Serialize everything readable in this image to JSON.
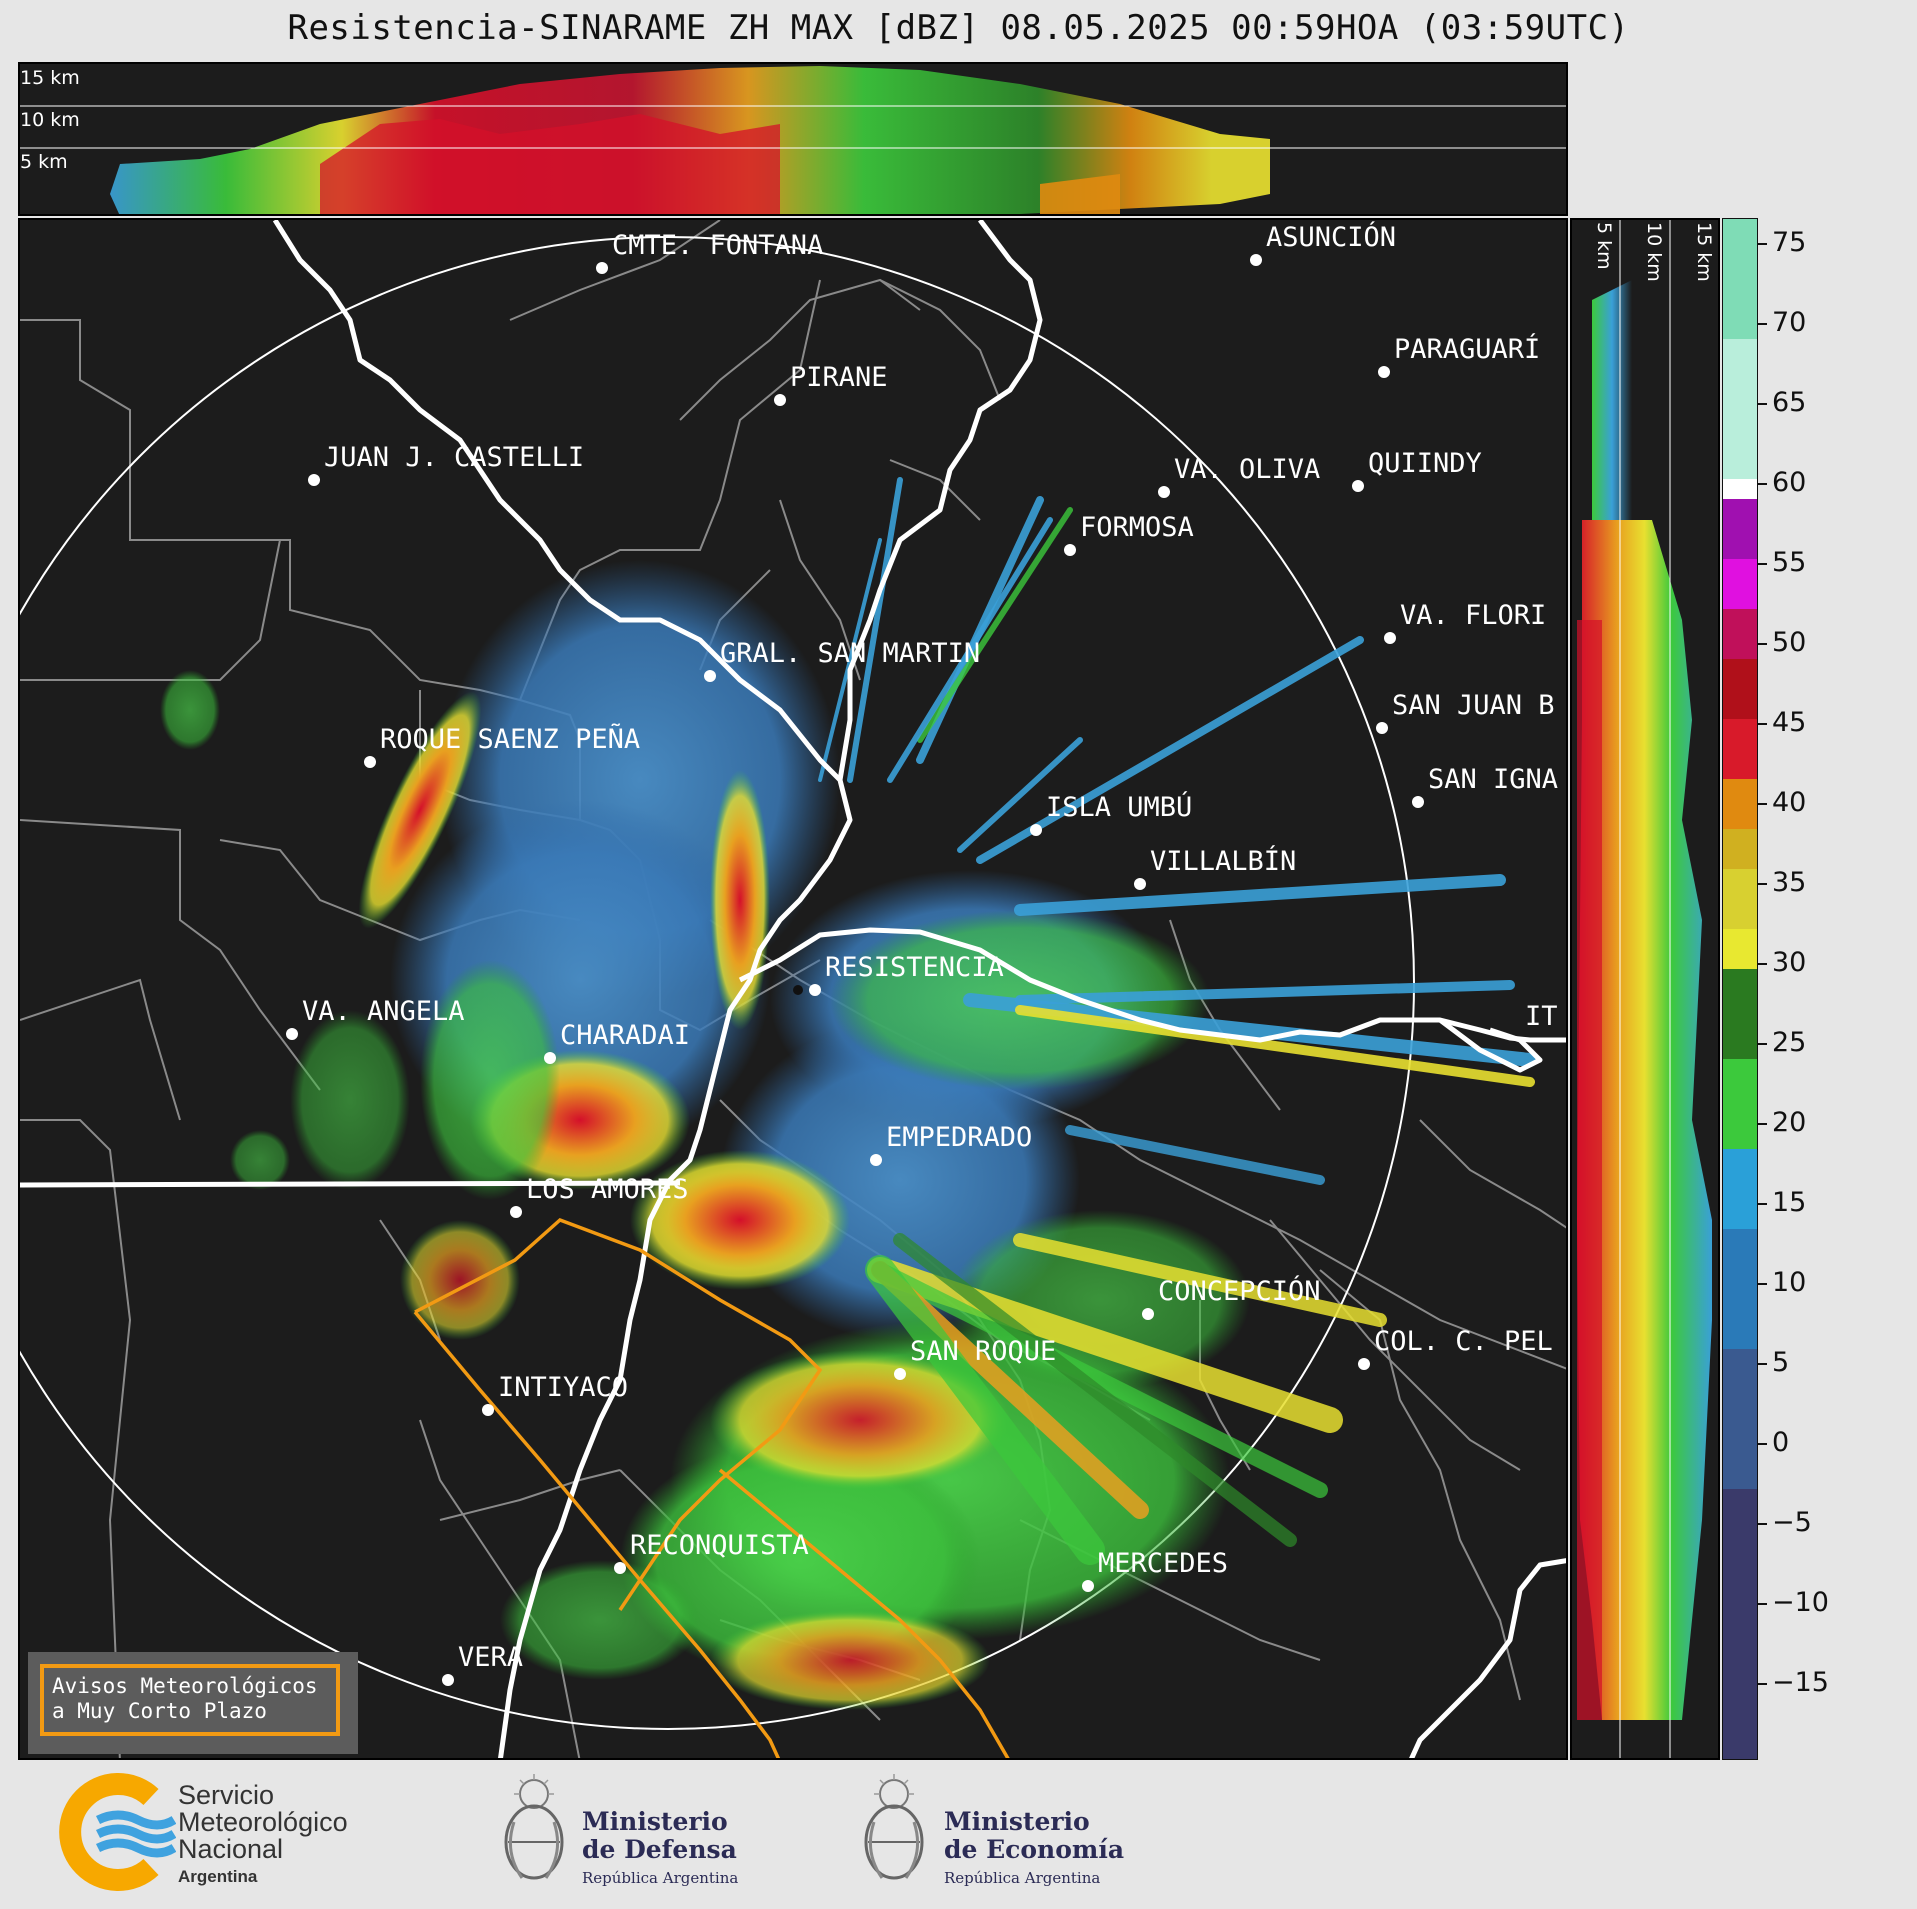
{
  "title": "Resistencia-SINARAME ZH MAX [dBZ] 08.05.2025 00:59HOA (03:59UTC)",
  "top_section": {
    "labels": [
      "15 km",
      "10 km",
      "5 km"
    ]
  },
  "side_section": {
    "labels": [
      "5 km",
      "10 km",
      "15 km"
    ]
  },
  "colorbar": {
    "ticks": [
      "75",
      "70",
      "65",
      "60",
      "55",
      "50",
      "45",
      "40",
      "35",
      "30",
      "25",
      "20",
      "15",
      "10",
      "5",
      "0",
      "−5",
      "−10",
      "−15"
    ],
    "range": [
      -20,
      77
    ]
  },
  "map": {
    "places": [
      {
        "name": "CMTE. FONTANA"
      },
      {
        "name": "ASUNCIÓN"
      },
      {
        "name": "PIRANE"
      },
      {
        "name": "PARAGUARÍ"
      },
      {
        "name": "JUAN J. CASTELLI"
      },
      {
        "name": "VA. OLIVA"
      },
      {
        "name": "QUIINDY"
      },
      {
        "name": "FORMOSA"
      },
      {
        "name": "VA. FLORI"
      },
      {
        "name": "GRAL. SAN MARTIN"
      },
      {
        "name": "SAN JUAN B"
      },
      {
        "name": "ROQUE SAENZ PEÑA"
      },
      {
        "name": "SAN IGNA"
      },
      {
        "name": "ISLA UMBÚ"
      },
      {
        "name": "VILLALBÍN"
      },
      {
        "name": "RESISTENCIA"
      },
      {
        "name": "VA. ANGELA"
      },
      {
        "name": "CHARADAI"
      },
      {
        "name": "IT"
      },
      {
        "name": "EMPEDRADO"
      },
      {
        "name": "LOS AMORES"
      },
      {
        "name": "CONCEPCIÓN"
      },
      {
        "name": "SAN ROQUE"
      },
      {
        "name": "COL. C. PEL"
      },
      {
        "name": "INTIYACO"
      },
      {
        "name": "RECONQUISTA"
      },
      {
        "name": "MERCEDES"
      },
      {
        "name": "VERA"
      }
    ]
  },
  "aviso": {
    "line1": "Avisos Meteorológicos",
    "line2": "a Muy Corto Plazo"
  },
  "footer": {
    "smn_line1": "Servicio",
    "smn_line2": "Meteorológico",
    "smn_line3": "Nacional",
    "smn_line4": "Argentina",
    "defensa_line1": "Ministerio",
    "defensa_line2": "de Defensa",
    "defensa_line3": "República Argentina",
    "economia_line1": "Ministerio",
    "economia_line2": "de Economía",
    "economia_line3": "República Argentina"
  },
  "colors": {
    "background": "#e6e6e6",
    "panel": "#1c1c1c",
    "warning_border": "#f29a13",
    "border_white": "#ffffff"
  }
}
